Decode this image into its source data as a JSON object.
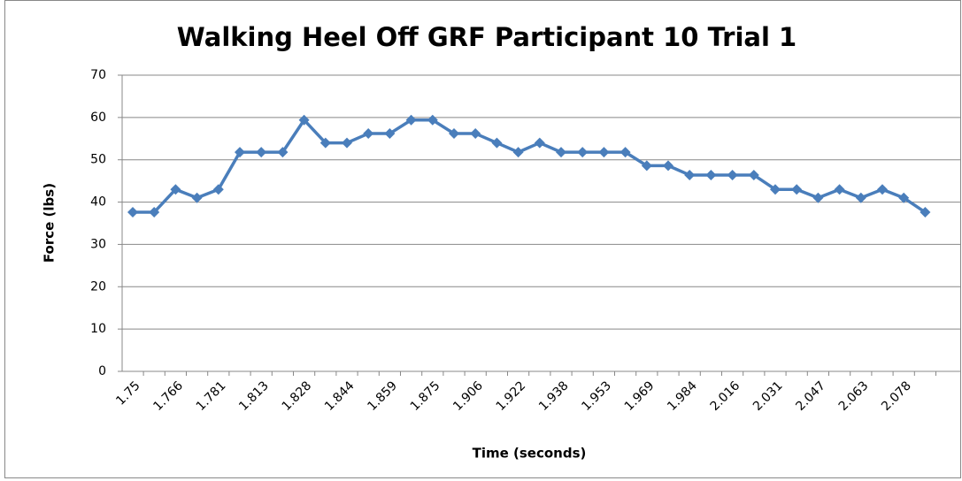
{
  "chart_data": {
    "type": "line",
    "title": "Walking Heel Off GRF Participant 10 Trial 1",
    "x_label": "Time (seconds)",
    "y_label": "Force (lbs)",
    "categories": [
      "1.75",
      null,
      "1.766",
      null,
      "1.781",
      null,
      "1.813",
      null,
      "1.828",
      null,
      "1.844",
      null,
      "1.859",
      null,
      "1.875",
      null,
      "1.906",
      null,
      "1.922",
      null,
      "1.938",
      null,
      "1.953",
      null,
      "1.969",
      null,
      "1.984",
      null,
      "2.016",
      null,
      "2.031",
      null,
      "2.047",
      null,
      "2.063",
      null,
      "2.078",
      null
    ],
    "series": [
      {
        "name": "Force",
        "color": "#4a7ebb",
        "values": [
          37.6,
          37.6,
          43,
          41,
          43,
          51.8,
          51.8,
          51.8,
          59.4,
          54,
          54,
          56.2,
          56.2,
          59.4,
          59.4,
          56.2,
          56.2,
          54,
          51.8,
          54,
          51.8,
          51.8,
          51.8,
          51.8,
          48.6,
          48.6,
          46.4,
          46.4,
          46.4,
          46.4,
          43,
          43,
          41,
          43,
          41,
          43,
          41,
          37.6
        ]
      }
    ],
    "ylim": [
      0,
      70
    ],
    "yticks": [
      0,
      10,
      20,
      30,
      40,
      50,
      60,
      70
    ],
    "grid": true
  }
}
